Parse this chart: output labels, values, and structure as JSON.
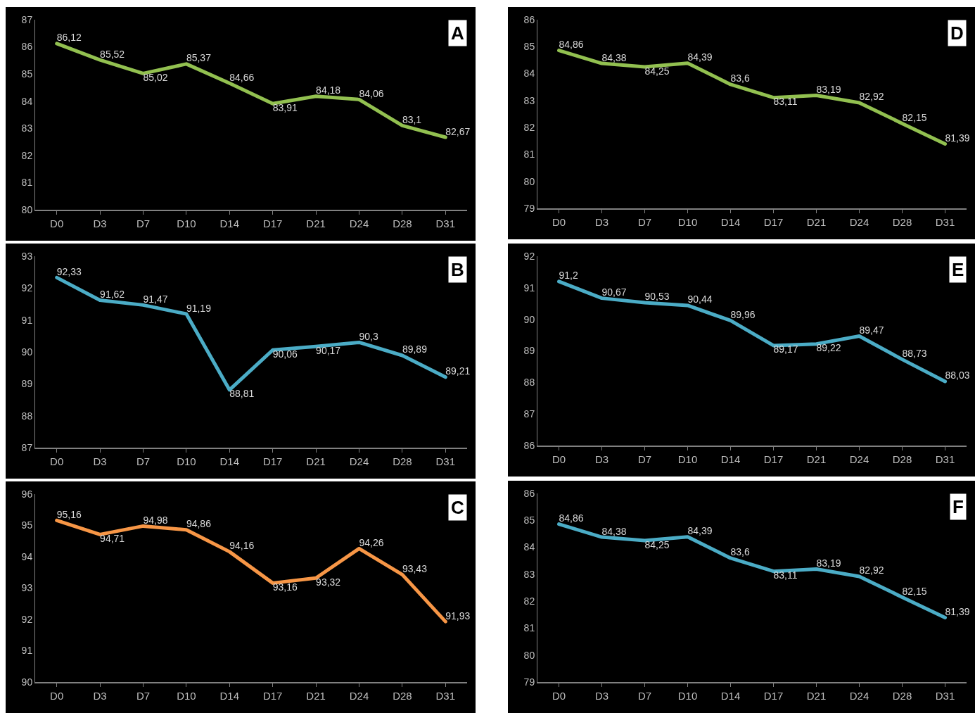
{
  "chart_data": [
    {
      "type": "line",
      "annotations": [
        "A"
      ],
      "categories": [
        "D0",
        "D3",
        "D7",
        "D10",
        "D14",
        "D17",
        "D21",
        "D24",
        "D28",
        "D31"
      ],
      "ylim": [
        80,
        87
      ],
      "yticks": [
        80,
        81,
        82,
        83,
        84,
        85,
        86,
        87
      ],
      "series": [
        {
          "color": "#92c050",
          "values": [
            86.12,
            85.52,
            85.02,
            85.37,
            84.66,
            83.91,
            84.18,
            84.06,
            83.1,
            82.67
          ],
          "value_labels": [
            "86,12",
            "85,52",
            "85,02",
            "85,37",
            "84,66",
            "83,91",
            "84,18",
            "84,06",
            "83,1",
            "82,67"
          ]
        }
      ]
    },
    {
      "type": "line",
      "annotations": [
        "B"
      ],
      "categories": [
        "D0",
        "D3",
        "D7",
        "D10",
        "D14",
        "D17",
        "D21",
        "D24",
        "D28",
        "D31"
      ],
      "ylim": [
        87,
        93
      ],
      "yticks": [
        87,
        88,
        89,
        90,
        91,
        92,
        93
      ],
      "series": [
        {
          "color": "#4bacc6",
          "values": [
            92.33,
            91.62,
            91.47,
            91.19,
            88.81,
            90.06,
            90.17,
            90.3,
            89.89,
            89.21
          ],
          "value_labels": [
            "92,33",
            "91,62",
            "91,47",
            "91,19",
            "88,81",
            "90,06",
            "90,17",
            "90,3",
            "89,89",
            "89,21"
          ]
        }
      ]
    },
    {
      "type": "line",
      "annotations": [
        "C"
      ],
      "categories": [
        "D0",
        "D3",
        "D7",
        "D10",
        "D14",
        "D17",
        "D21",
        "D24",
        "D28",
        "D31"
      ],
      "ylim": [
        90,
        96
      ],
      "yticks": [
        90,
        91,
        92,
        93,
        94,
        95,
        96
      ],
      "series": [
        {
          "color": "#f79646",
          "values": [
            95.16,
            94.71,
            94.98,
            94.86,
            94.16,
            93.16,
            93.32,
            94.26,
            93.43,
            91.93
          ],
          "value_labels": [
            "95,16",
            "94,71",
            "94,98",
            "94,86",
            "94,16",
            "93,16",
            "93,32",
            "94,26",
            "93,43",
            "91,93"
          ]
        }
      ]
    },
    {
      "type": "line",
      "annotations": [
        "D"
      ],
      "categories": [
        "D0",
        "D3",
        "D7",
        "D10",
        "D14",
        "D17",
        "D21",
        "D24",
        "D28",
        "D31"
      ],
      "ylim": [
        79,
        86
      ],
      "yticks": [
        79,
        80,
        81,
        82,
        83,
        84,
        85,
        86
      ],
      "series": [
        {
          "color": "#92c050",
          "values": [
            84.86,
            84.38,
            84.25,
            84.39,
            83.6,
            83.11,
            83.19,
            82.92,
            82.15,
            81.39
          ],
          "value_labels": [
            "84,86",
            "84,38",
            "84,25",
            "84,39",
            "83,6",
            "83,11",
            "83,19",
            "82,92",
            "82,15",
            "81,39"
          ]
        }
      ]
    },
    {
      "type": "line",
      "annotations": [
        "E"
      ],
      "categories": [
        "D0",
        "D3",
        "D7",
        "D10",
        "D14",
        "D17",
        "D21",
        "D24",
        "D28",
        "D31"
      ],
      "ylim": [
        86,
        92
      ],
      "yticks": [
        86,
        87,
        88,
        89,
        90,
        91,
        92
      ],
      "series": [
        {
          "color": "#4bacc6",
          "values": [
            91.2,
            90.67,
            90.53,
            90.44,
            89.96,
            89.17,
            89.22,
            89.47,
            88.73,
            88.03
          ],
          "value_labels": [
            "91,2",
            "90,67",
            "90,53",
            "90,44",
            "89,96",
            "89,17",
            "89,22",
            "89,47",
            "88,73",
            "88,03"
          ]
        }
      ]
    },
    {
      "type": "line",
      "annotations": [
        "F"
      ],
      "categories": [
        "D0",
        "D3",
        "D7",
        "D10",
        "D14",
        "D17",
        "D21",
        "D24",
        "D28",
        "D31"
      ],
      "ylim": [
        79,
        86
      ],
      "yticks": [
        79,
        80,
        81,
        82,
        83,
        84,
        85,
        86
      ],
      "series": [
        {
          "color": "#4bacc6",
          "values": [
            84.86,
            84.38,
            84.25,
            84.39,
            83.6,
            83.11,
            83.19,
            82.92,
            82.15,
            81.39
          ],
          "value_labels": [
            "84,86",
            "84,38",
            "84,25",
            "84,39",
            "83,6",
            "83,11",
            "83,19",
            "82,92",
            "82,15",
            "81,39"
          ]
        }
      ]
    }
  ]
}
